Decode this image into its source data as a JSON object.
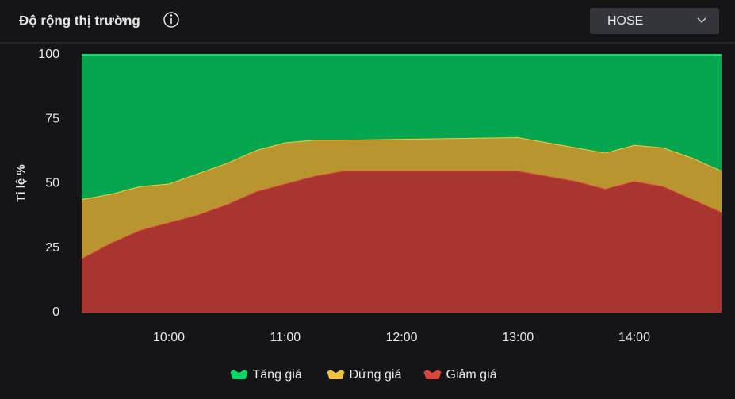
{
  "market_selector": "HOSE",
  "chart_data": {
    "type": "stacked-area",
    "title": "Độ rộng thị trường",
    "y_label": "Tỉ lệ %",
    "x": [
      "09:15",
      "09:30",
      "09:45",
      "10:00",
      "10:15",
      "10:30",
      "10:45",
      "11:00",
      "11:15",
      "11:30",
      "13:00",
      "13:15",
      "13:30",
      "13:45",
      "14:00",
      "14:15",
      "14:30",
      "14:45"
    ],
    "xlim": [
      "09:15",
      "14:45"
    ],
    "xticks": [
      "10:00",
      "11:00",
      "12:00",
      "13:00",
      "14:00"
    ],
    "ylim": [
      0,
      100
    ],
    "yticks": [
      0,
      25,
      50,
      75,
      100
    ],
    "grid": false,
    "legend": "bottom",
    "series": [
      {
        "name": "Tăng giá",
        "color": "#05a64f",
        "values": [
          56,
          54,
          51,
          50,
          46,
          42,
          37,
          34,
          33,
          33,
          32,
          34,
          36,
          38,
          35,
          36,
          40,
          45
        ]
      },
      {
        "name": "Đứng giá",
        "color": "#b8952f",
        "values": [
          23,
          19,
          17,
          15,
          16,
          16,
          16,
          16,
          14,
          12,
          13,
          13,
          13,
          14,
          14,
          15,
          16,
          16
        ]
      },
      {
        "name": "Giảm giá",
        "color": "#a8352f",
        "values": [
          21,
          27,
          32,
          35,
          38,
          42,
          47,
          50,
          53,
          55,
          55,
          53,
          51,
          48,
          51,
          49,
          44,
          39
        ]
      }
    ]
  }
}
